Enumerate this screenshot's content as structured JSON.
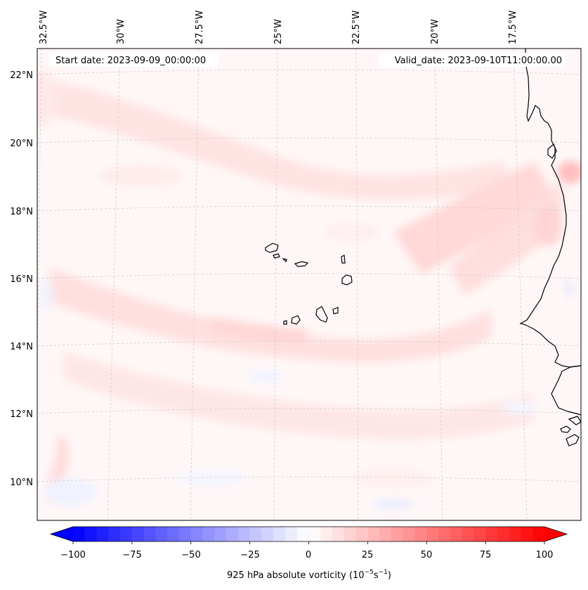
{
  "map": {
    "start_label": "Start date: 2023-09-09_00:00:00",
    "valid_label": "Valid_date: 2023-09-10T11:00:00.00",
    "lon_labels": [
      "32.5°W",
      "30°W",
      "27.5°W",
      "25°W",
      "22.5°W",
      "20°W",
      "17.5°W"
    ],
    "lat_labels": [
      "22°N",
      "20°N",
      "18°N",
      "16°N",
      "14°N",
      "12°N",
      "10°N"
    ]
  },
  "colorbar": {
    "label": "925 hPa absolute vorticity (10",
    "label_exp1": "−5",
    "label_mid": "s",
    "label_exp2": "−1",
    "label_end": ")",
    "ticks": [
      "−100",
      "−75",
      "−50",
      "−25",
      "0",
      "25",
      "50",
      "75",
      "100"
    ],
    "min": -100,
    "max": 100,
    "step": 5,
    "colors": {
      "negative": "#0000ff",
      "zero": "#ffffff",
      "positive": "#ff0000"
    }
  }
}
